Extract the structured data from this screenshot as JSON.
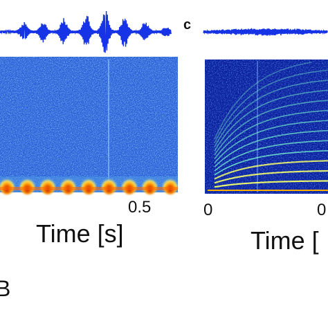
{
  "panel_left": {
    "x_tick": "0.5",
    "x_label": "Time [s]"
  },
  "panel_right": {
    "letter": "c",
    "x_tick_first": "0",
    "x_tick_second": "0",
    "x_label": "Time ["
  },
  "bottom_letter": "B"
}
